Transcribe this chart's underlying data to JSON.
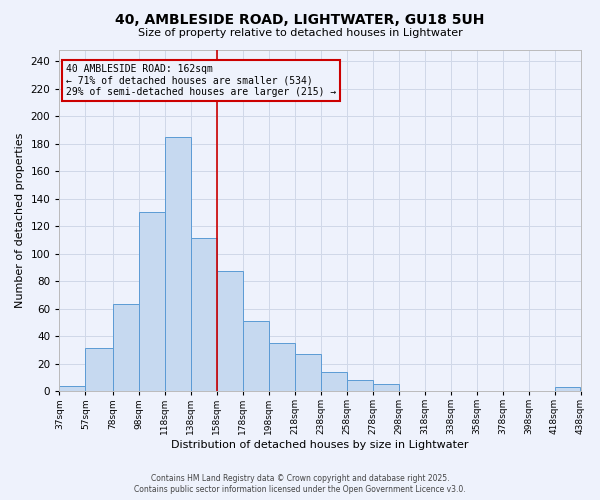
{
  "title": "40, AMBLESIDE ROAD, LIGHTWATER, GU18 5UH",
  "subtitle": "Size of property relative to detached houses in Lightwater",
  "xlabel": "Distribution of detached houses by size in Lightwater",
  "ylabel": "Number of detached properties",
  "footer_line1": "Contains HM Land Registry data © Crown copyright and database right 2025.",
  "footer_line2": "Contains public sector information licensed under the Open Government Licence v3.0.",
  "annotation_title": "40 AMBLESIDE ROAD: 162sqm",
  "annotation_line1": "← 71% of detached houses are smaller (534)",
  "annotation_line2": "29% of semi-detached houses are larger (215) →",
  "bar_edges": [
    37,
    57,
    78,
    98,
    118,
    138,
    158,
    178,
    198,
    218,
    238,
    258,
    278,
    298,
    318,
    338,
    358,
    378,
    398,
    418,
    438
  ],
  "bar_heights": [
    4,
    31,
    63,
    130,
    185,
    111,
    87,
    51,
    35,
    27,
    14,
    8,
    5,
    0,
    0,
    0,
    0,
    0,
    0,
    3
  ],
  "bar_color": "#c6d9f0",
  "bar_edge_color": "#5b9bd5",
  "vline_color": "#cc0000",
  "vline_x": 158,
  "annotation_box_edge_color": "#cc0000",
  "grid_color": "#d0d8e8",
  "background_color": "#eef2fc",
  "ylim": [
    0,
    248
  ],
  "yticks": [
    0,
    20,
    40,
    60,
    80,
    100,
    120,
    140,
    160,
    180,
    200,
    220,
    240
  ],
  "tick_labels": [
    "37sqm",
    "57sqm",
    "78sqm",
    "98sqm",
    "118sqm",
    "138sqm",
    "158sqm",
    "178sqm",
    "198sqm",
    "218sqm",
    "238sqm",
    "258sqm",
    "278sqm",
    "298sqm",
    "318sqm",
    "338sqm",
    "358sqm",
    "378sqm",
    "398sqm",
    "418sqm",
    "438sqm"
  ]
}
